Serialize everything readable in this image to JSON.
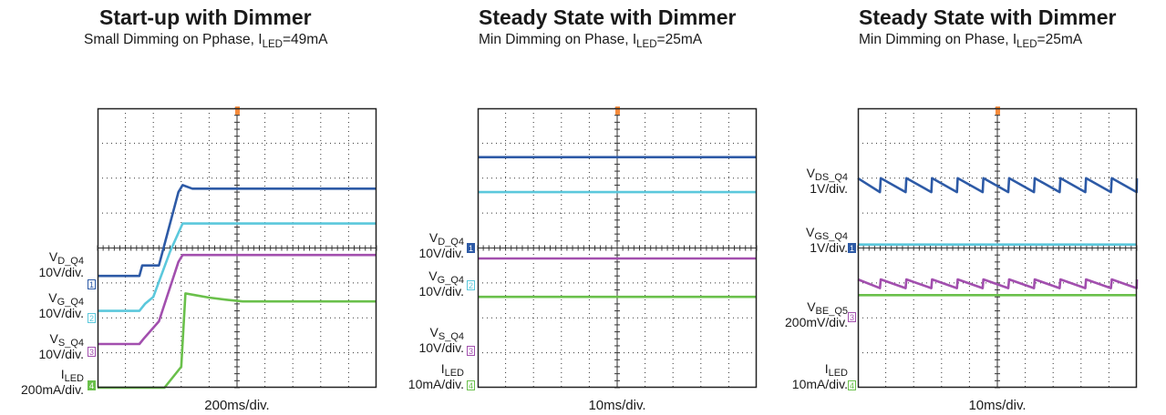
{
  "colors": {
    "blue": "#2d5aa6",
    "cyan": "#5bc8dc",
    "purple": "#a24fae",
    "green": "#6ac04b",
    "orange": "#f58b3c",
    "grid": "#333333",
    "frame": "#222222"
  },
  "chart_data": [
    {
      "type": "line",
      "title": "Start-up with Dimmer",
      "subtitle": {
        "prefix": "Small Dimming on Pphase, I",
        "sub": "LED",
        "suffix": "=49mA"
      },
      "xlabel": "200ms/div.",
      "grid": true,
      "channels": [
        {
          "name_main": "V",
          "name_sub": "D_Q4",
          "scale": "10V/div.",
          "marker": "1",
          "color": "blue"
        },
        {
          "name_main": "V",
          "name_sub": "G_Q4",
          "scale": "10V/div.",
          "marker": "2",
          "color": "cyan"
        },
        {
          "name_main": "V",
          "name_sub": "S_Q4",
          "scale": "10V/div.",
          "marker": "3",
          "color": "purple"
        },
        {
          "name_main": "I",
          "name_sub": "LED",
          "scale": "200mA/div.",
          "marker": "4",
          "color": "green"
        }
      ],
      "series": [
        {
          "color": "blue",
          "x": [
            0,
            1.5,
            1.6,
            2.2,
            2.9,
            3.05,
            3.4,
            10
          ],
          "y": [
            3.2,
            3.2,
            3.5,
            3.5,
            5.6,
            5.8,
            5.7,
            5.7
          ]
        },
        {
          "color": "cyan",
          "x": [
            0,
            1.5,
            1.7,
            2.0,
            2.6,
            3.05,
            10
          ],
          "y": [
            2.2,
            2.2,
            2.4,
            2.6,
            3.9,
            4.7,
            4.7
          ]
        },
        {
          "color": "purple",
          "x": [
            0,
            1.5,
            1.65,
            2.2,
            2.9,
            3.05,
            10
          ],
          "y": [
            1.25,
            1.25,
            1.4,
            1.9,
            3.6,
            3.8,
            3.8
          ]
        },
        {
          "color": "green",
          "x": [
            0,
            2.4,
            3.0,
            3.15,
            3.5,
            4.0,
            4.6,
            5.2,
            10
          ],
          "y": [
            0,
            0,
            0.6,
            2.7,
            2.65,
            2.58,
            2.52,
            2.47,
            2.47
          ]
        }
      ]
    },
    {
      "type": "line",
      "title": "Steady State with Dimmer",
      "subtitle": {
        "prefix": "Min Dimming on Phase, I",
        "sub": "LED",
        "suffix": "=25mA"
      },
      "xlabel": "10ms/div.",
      "grid": true,
      "channels": [
        {
          "name_main": "V",
          "name_sub": "D_Q4",
          "scale": "10V/div.",
          "marker": "1",
          "color": "blue"
        },
        {
          "name_main": "V",
          "name_sub": "G_Q4",
          "scale": "10V/div.",
          "marker": "2",
          "color": "cyan"
        },
        {
          "name_main": "V",
          "name_sub": "S_Q4",
          "scale": "10V/div.",
          "marker": "3",
          "color": "purple"
        },
        {
          "name_main": "I",
          "name_sub": "LED",
          "scale": "10mA/div.",
          "marker": "4",
          "color": "green"
        }
      ],
      "series": [
        {
          "color": "blue",
          "x": [
            0,
            10
          ],
          "y": [
            6.6,
            6.6
          ]
        },
        {
          "color": "cyan",
          "x": [
            0,
            10
          ],
          "y": [
            5.6,
            5.6
          ]
        },
        {
          "color": "purple",
          "x": [
            0,
            10
          ],
          "y": [
            3.7,
            3.7
          ]
        },
        {
          "color": "green",
          "x": [
            0,
            10
          ],
          "y": [
            2.6,
            2.6
          ]
        }
      ]
    },
    {
      "type": "line",
      "title": "Steady State with Dimmer",
      "subtitle": {
        "prefix": "Min Dimming on Phase, I",
        "sub": "LED",
        "suffix": "=25mA"
      },
      "xlabel": "10ms/div.",
      "grid": true,
      "channels": [
        {
          "name_main": "V",
          "name_sub": "DS_Q4",
          "scale": "1V/div.",
          "marker": "1",
          "color": "blue"
        },
        {
          "name_main": "V",
          "name_sub": "GS_Q4",
          "scale": "1V/div.",
          "marker": "2",
          "color": "cyan"
        },
        {
          "name_main": "V",
          "name_sub": "BE_Q5",
          "scale": "200mV/div.",
          "marker": "3",
          "color": "purple"
        },
        {
          "name_main": "I",
          "name_sub": "LED",
          "scale": "10mA/div.",
          "marker": "4",
          "color": "green"
        }
      ],
      "series": [
        {
          "color": "blue",
          "sawtooth": true,
          "period": 0.92,
          "high": 6.0,
          "low": 5.6,
          "phase": 0.1
        },
        {
          "color": "cyan",
          "x": [
            0,
            10
          ],
          "y": [
            4.1,
            4.1
          ]
        },
        {
          "color": "purple",
          "sawtooth": true,
          "period": 0.92,
          "high": 3.1,
          "low": 2.85,
          "phase": 0.1
        },
        {
          "color": "green",
          "x": [
            0,
            10
          ],
          "y": [
            2.65,
            2.65
          ]
        }
      ]
    }
  ]
}
